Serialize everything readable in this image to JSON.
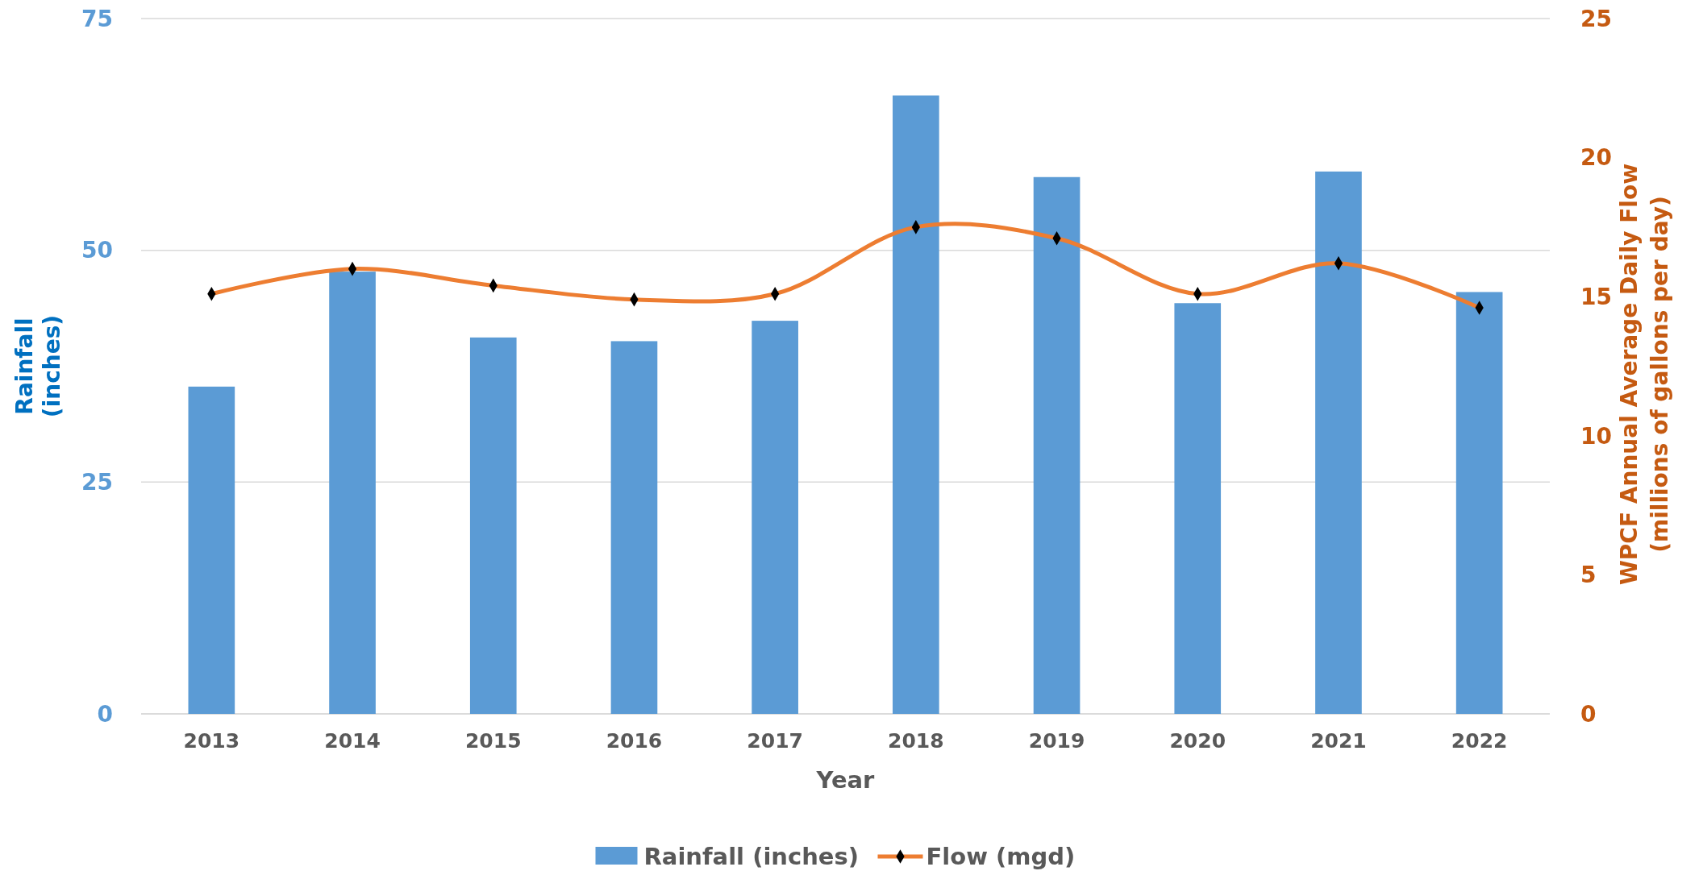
{
  "chart_data": {
    "type": "bar",
    "xlabel": "Year",
    "ylabel": "Rainfall\n(inches)",
    "y2label": "WPCF  Annual Average Daily Flow\n(millions of gallons per day)",
    "categories": [
      "2013",
      "2014",
      "2015",
      "2016",
      "2017",
      "2018",
      "2019",
      "2020",
      "2021",
      "2022"
    ],
    "series": [
      {
        "name": "Rainfall (inches)",
        "color": "#5b9bd5",
        "values": [
          35.3,
          47.7,
          40.6,
          40.2,
          42.4,
          66.7,
          57.9,
          44.3,
          58.5,
          45.5
        ]
      },
      {
        "name": "Flow (mgd)",
        "type": "line",
        "axis": "y2",
        "color": "#ed7d31",
        "values": [
          15.1,
          16.0,
          15.4,
          14.9,
          15.1,
          17.5,
          17.1,
          15.1,
          16.2,
          14.6
        ]
      }
    ],
    "ylim": [
      0,
      75
    ],
    "yticks": [
      0,
      25,
      50,
      75
    ],
    "y2lim": [
      0,
      25
    ],
    "y2ticks": [
      0,
      5,
      10,
      15,
      20,
      25
    ],
    "grid": "y",
    "legend": "bottom",
    "marker": "diamond",
    "line_style": "solid"
  }
}
